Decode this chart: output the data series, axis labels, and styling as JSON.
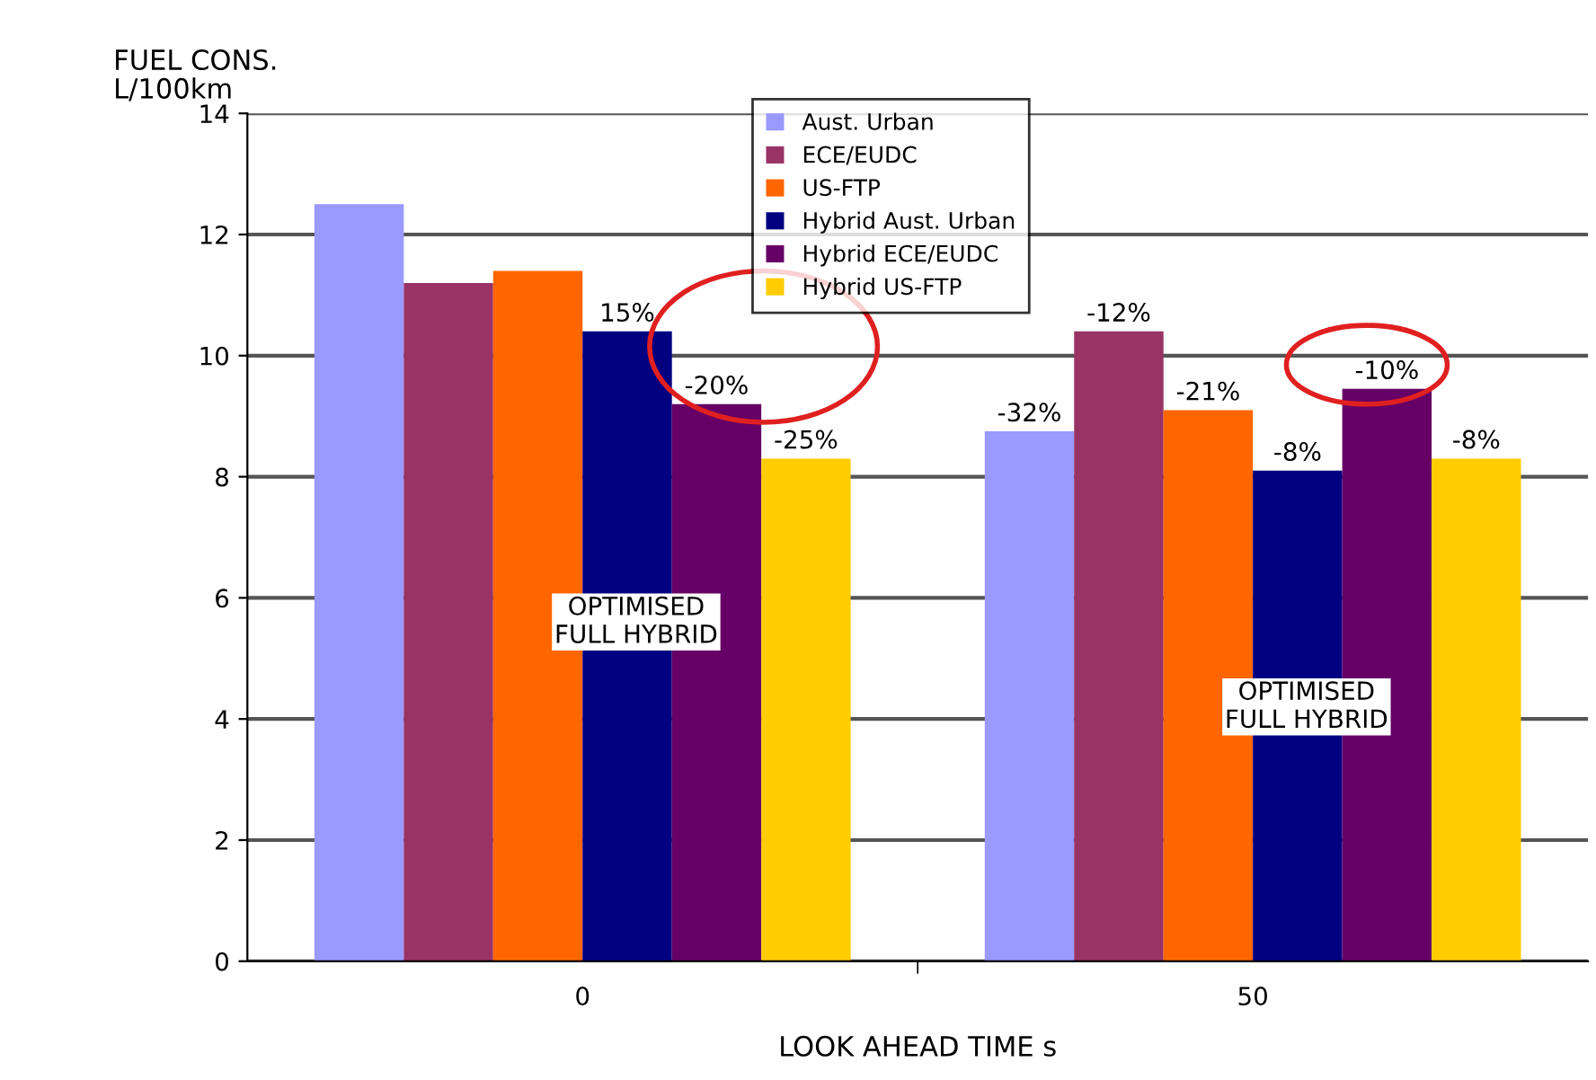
{
  "chart_data": {
    "type": "bar",
    "xlabel": "LOOK AHEAD TIME s",
    "ylabel": "FUEL CONS.\nL/100km",
    "categories": [
      "0",
      "50"
    ],
    "series": [
      {
        "name": "Aust. Urban",
        "color": "#9999ff",
        "values": [
          12.5,
          8.75
        ]
      },
      {
        "name": "ECE/EUDC",
        "color": "#993366",
        "values": [
          11.2,
          10.4
        ]
      },
      {
        "name": "US-FTP",
        "color": "#ff6600",
        "values": [
          11.4,
          9.1
        ]
      },
      {
        "name": "Hybrid Aust. Urban",
        "color": "#000080",
        "values": [
          10.4,
          8.1
        ]
      },
      {
        "name": "Hybrid ECE/EUDC",
        "color": "#660066",
        "values": [
          9.2,
          9.45
        ]
      },
      {
        "name": "Hybrid US-FTP",
        "color": "#ffcc00",
        "values": [
          8.3,
          8.3
        ]
      }
    ],
    "ylim": [
      0,
      14
    ],
    "yticks": [
      0,
      2,
      4,
      6,
      8,
      10,
      12,
      14
    ],
    "grid": "y",
    "legend": "top",
    "annotations": [
      "15%",
      "-20%",
      "-25%",
      "-32%",
      "-12%",
      "-21%",
      "-8%",
      "-10%",
      "-8%",
      {
        "text": "OPTIMISED\nFULL HYBRID",
        "x": "0",
        "y": 5.6
      },
      {
        "text": "OPTIMISED\nFULL HYBRID",
        "x": "50",
        "y": 4.2
      }
    ]
  }
}
